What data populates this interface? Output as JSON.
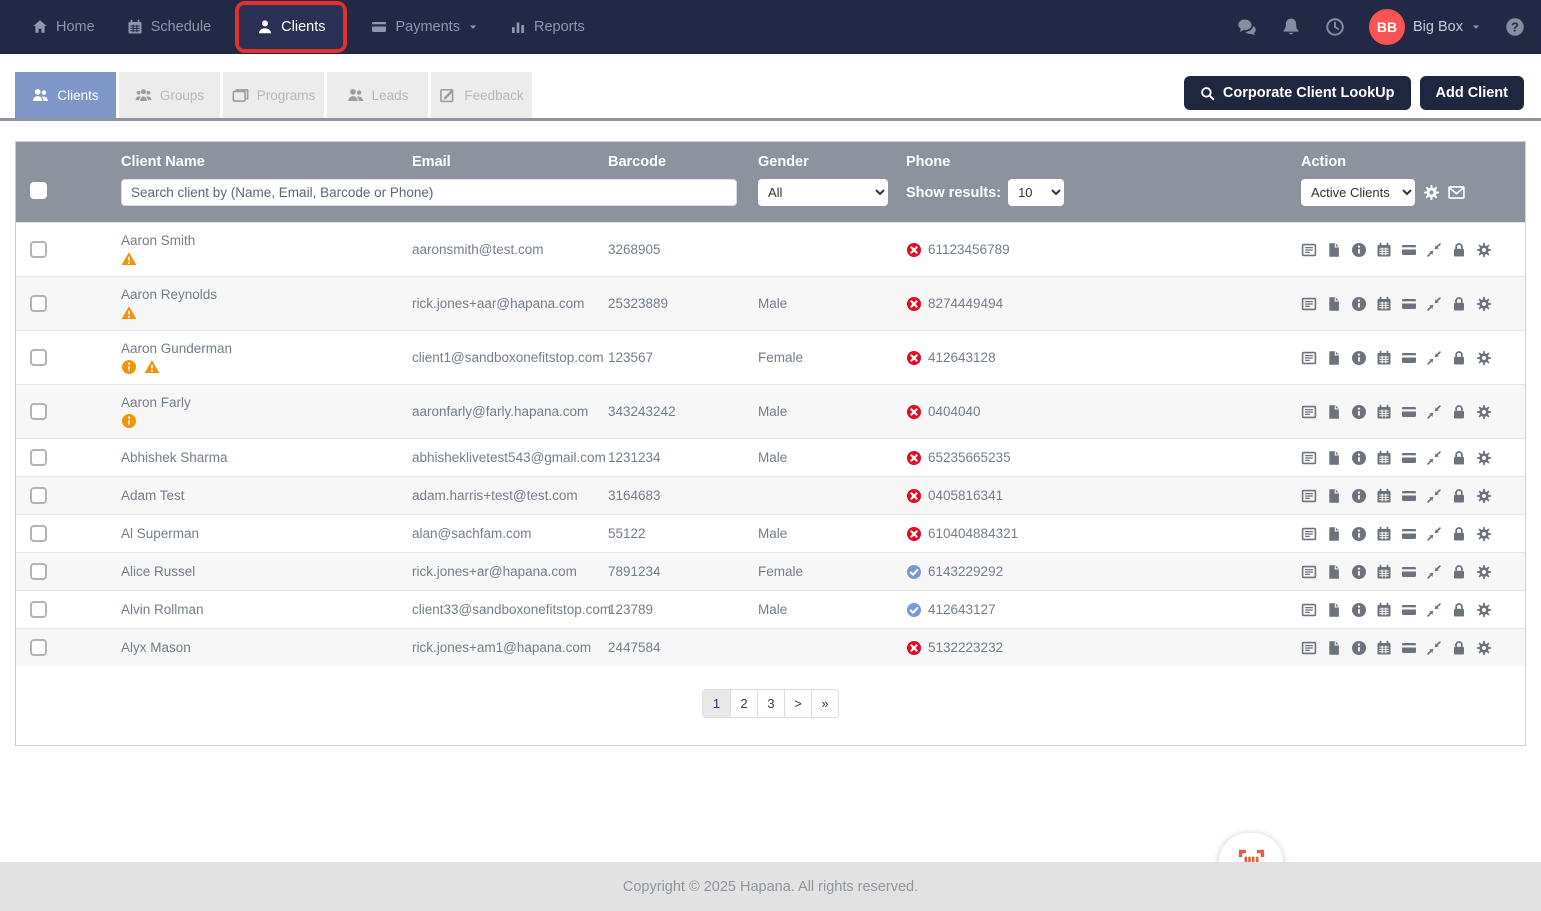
{
  "colors": {
    "navbar_bg": "#212944",
    "active_tab_bg": "#7E96C8",
    "highlight_ring": "#E23030",
    "table_header_bg": "#8C939F",
    "invalid_phone_icon": "#E30B20",
    "valid_phone_icon": "#7B99D6",
    "warning_icon": "#F59307",
    "avatar_bg": "#FA5356",
    "scan_icon": "#EE5A3A"
  },
  "topnav": {
    "items": [
      {
        "label": "Home",
        "icon": "home-icon"
      },
      {
        "label": "Schedule",
        "icon": "calendar-icon"
      },
      {
        "label": "Clients",
        "icon": "person-icon",
        "active": true,
        "highlighted": true
      },
      {
        "label": "Payments",
        "icon": "credit-card-icon",
        "has_caret": true
      },
      {
        "label": "Reports",
        "icon": "bar-chart-icon"
      }
    ],
    "right_icons": [
      "chat-icon",
      "bell-icon",
      "clock-icon"
    ],
    "user": {
      "initials": "BB",
      "name": "Big Box"
    },
    "help_icon": "help-icon"
  },
  "tabs": [
    {
      "label": "Clients",
      "icon": "people-icon",
      "active": true
    },
    {
      "label": "Groups",
      "icon": "groups-icon"
    },
    {
      "label": "Programs",
      "icon": "window-icon"
    },
    {
      "label": "Leads",
      "icon": "leads-icon"
    },
    {
      "label": "Feedback",
      "icon": "feedback-icon"
    }
  ],
  "header_buttons": {
    "corporate_lookup": "Corporate Client LookUp",
    "add_client": "Add Client"
  },
  "table": {
    "columns": {
      "client_name": "Client Name",
      "email": "Email",
      "barcode": "Barcode",
      "gender": "Gender",
      "phone": "Phone",
      "action": "Action"
    },
    "search_placeholder": "Search client by (Name, Email, Barcode or Phone)",
    "gender_filter_value": "All",
    "show_results_label": "Show results:",
    "show_results_value": "10",
    "action_filter_value": "Active Clients",
    "header_action_icons": [
      "gear",
      "envelope"
    ],
    "row_action_icons": [
      "list",
      "document",
      "info",
      "calendar",
      "credit-card",
      "compress-arrows",
      "lock",
      "gear"
    ],
    "rows": [
      {
        "name": "Aaron Smith",
        "flags": [
          "warning"
        ],
        "email": "aaronsmith@test.com",
        "barcode": "3268905",
        "gender": "",
        "phone": "61123456789",
        "phone_status": "invalid"
      },
      {
        "name": "Aaron Reynolds",
        "flags": [
          "warning"
        ],
        "email": "rick.jones+aar@hapana.com",
        "barcode": "25323889",
        "gender": "Male",
        "phone": "8274449494",
        "phone_status": "invalid"
      },
      {
        "name": "Aaron Gunderman",
        "flags": [
          "info",
          "warning"
        ],
        "email": "client1@sandboxonefitstop.com",
        "barcode": "123567",
        "gender": "Female",
        "phone": "412643128",
        "phone_status": "invalid"
      },
      {
        "name": "Aaron Farly",
        "flags": [
          "info"
        ],
        "email": "aaronfarly@farly.hapana.com",
        "barcode": "343243242",
        "gender": "Male",
        "phone": "0404040",
        "phone_status": "invalid"
      },
      {
        "name": "Abhishek Sharma",
        "flags": [],
        "email": "abhisheklivetest543@gmail.com",
        "barcode": "1231234",
        "gender": "Male",
        "phone": "65235665235",
        "phone_status": "invalid"
      },
      {
        "name": "Adam Test",
        "flags": [],
        "email": "adam.harris+test@test.com",
        "barcode": "3164683",
        "gender": "",
        "phone": "0405816341",
        "phone_status": "invalid"
      },
      {
        "name": "Al Superman",
        "flags": [],
        "email": "alan@sachfam.com",
        "barcode": "55122",
        "gender": "Male",
        "phone": "610404884321",
        "phone_status": "invalid"
      },
      {
        "name": "Alice Russel",
        "flags": [],
        "email": "rick.jones+ar@hapana.com",
        "barcode": "7891234",
        "gender": "Female",
        "phone": "6143229292",
        "phone_status": "valid"
      },
      {
        "name": "Alvin Rollman",
        "flags": [],
        "email": "client33@sandboxonefitstop.com",
        "barcode": "123789",
        "gender": "Male",
        "phone": "412643127",
        "phone_status": "valid"
      },
      {
        "name": "Alyx Mason",
        "flags": [],
        "email": "rick.jones+am1@hapana.com",
        "barcode": "2447584",
        "gender": "",
        "phone": "5132223232",
        "phone_status": "invalid"
      }
    ]
  },
  "pagination": {
    "pages": [
      "1",
      "2",
      "3",
      ">",
      "»"
    ],
    "active": "1"
  },
  "footer": {
    "copyright": "Copyright © 2025 Hapana. All rights reserved."
  },
  "scan_button_icon": "barcode-scan-icon"
}
